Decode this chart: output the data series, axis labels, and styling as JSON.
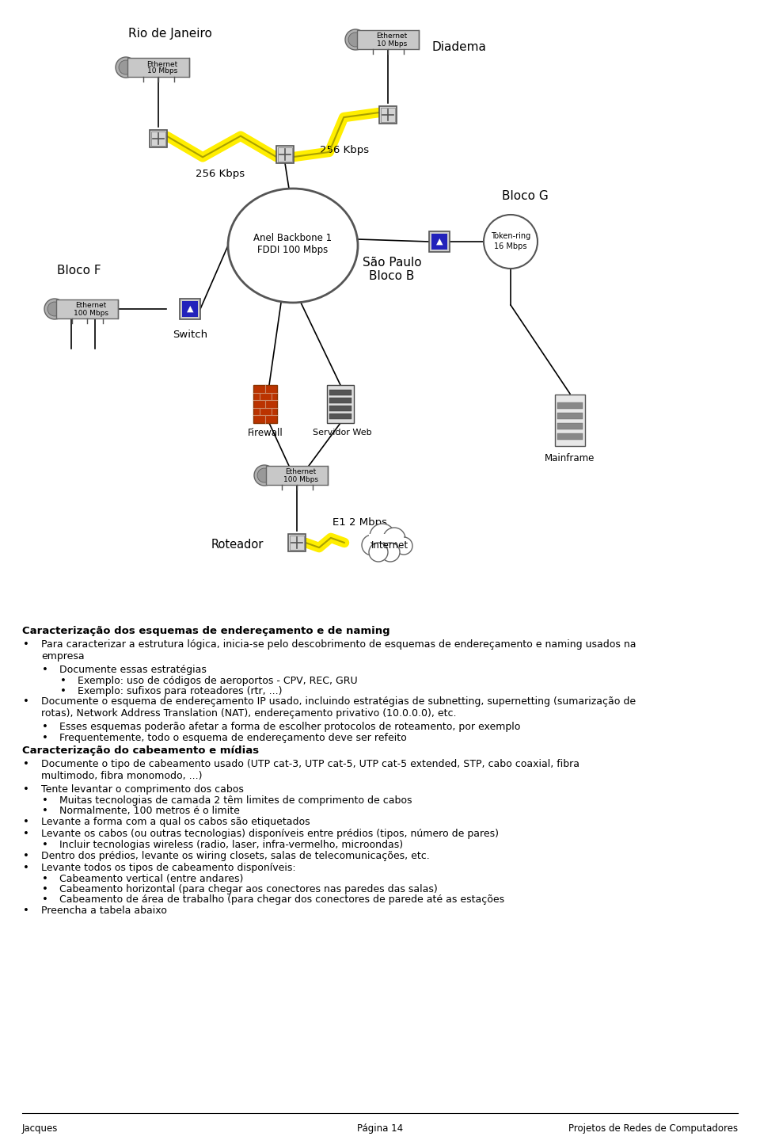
{
  "bg_color": "#ffffff",
  "footer_left": "Jacques",
  "footer_center": "Página 14",
  "footer_right": "Projetos de Redes de Computadores",
  "section1_title": "Caracterização dos esquemas de endereçamento e de naming",
  "section2_title": "Caracterização do cabeamento e mídias"
}
